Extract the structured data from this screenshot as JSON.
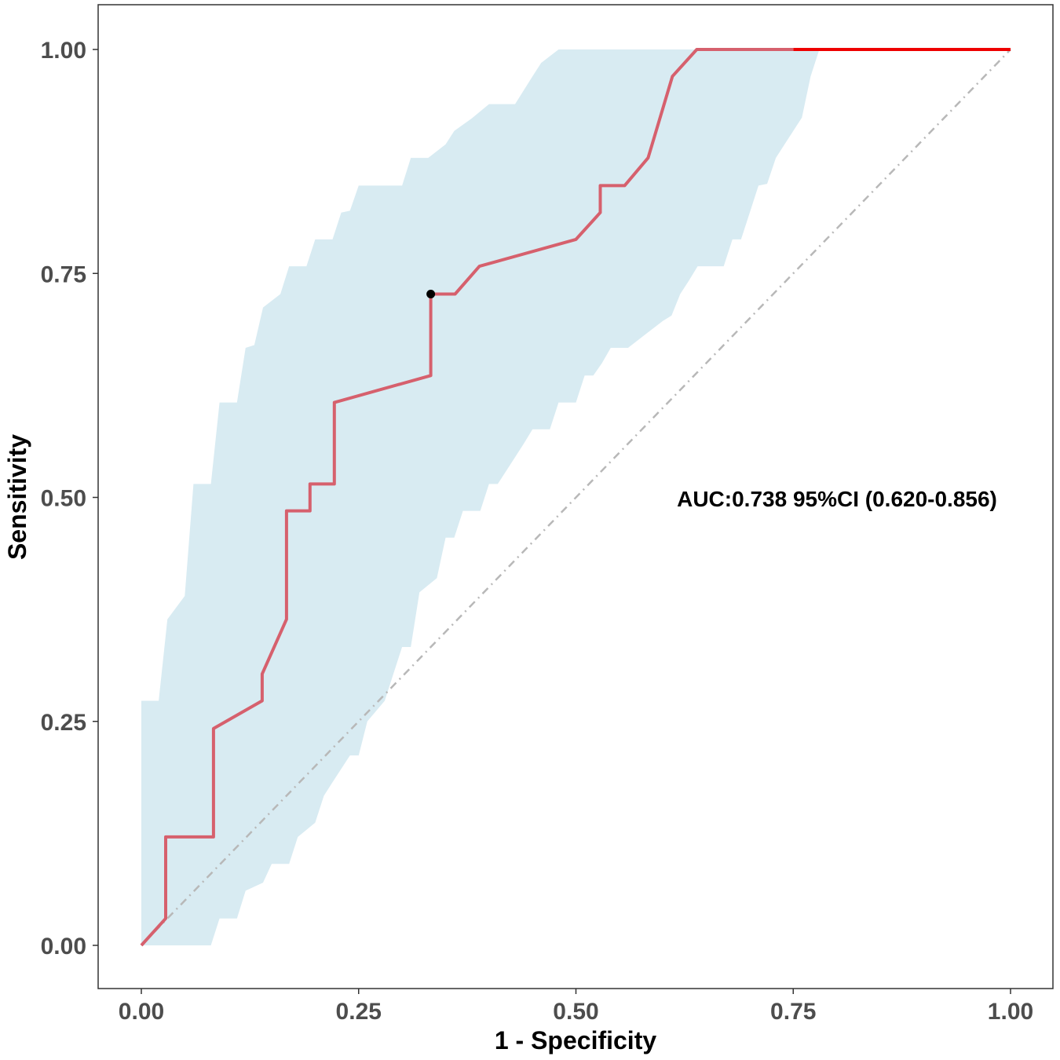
{
  "chart_data": {
    "type": "line",
    "title": "",
    "xlabel": "1 - Specificity",
    "ylabel": "Sensitivity",
    "xlim": [
      0,
      1
    ],
    "ylim": [
      0,
      1
    ],
    "x_ticks": [
      0,
      0.25,
      0.5,
      0.75,
      1
    ],
    "x_tick_labels": [
      "0.00",
      "0.25",
      "0.50",
      "0.75",
      "1.00"
    ],
    "y_ticks": [
      0,
      0.25,
      0.5,
      0.75,
      1
    ],
    "y_tick_labels": [
      "0.00",
      "0.25",
      "0.50",
      "0.75",
      "1.00"
    ],
    "annotation": "AUC:0.738 95%CI (0.620-0.856)",
    "grid": false,
    "colors": {
      "roc_line": "#d6606d",
      "roc_line_end": "#ee0000",
      "ci_band": "#d8ebf2",
      "diagonal": "#b8b8b8",
      "optimal_point": "#000000",
      "frame": "#333333"
    },
    "series": [
      {
        "name": "ROC",
        "points": [
          [
            0,
            0
          ],
          [
            0.028,
            0.03
          ],
          [
            0.028,
            0.121
          ],
          [
            0.083,
            0.121
          ],
          [
            0.083,
            0.242
          ],
          [
            0.139,
            0.273
          ],
          [
            0.139,
            0.303
          ],
          [
            0.167,
            0.364
          ],
          [
            0.167,
            0.485
          ],
          [
            0.194,
            0.485
          ],
          [
            0.194,
            0.515
          ],
          [
            0.222,
            0.515
          ],
          [
            0.222,
            0.606
          ],
          [
            0.333,
            0.636
          ],
          [
            0.333,
            0.727
          ],
          [
            0.361,
            0.727
          ],
          [
            0.389,
            0.758
          ],
          [
            0.5,
            0.788
          ],
          [
            0.528,
            0.818
          ],
          [
            0.528,
            0.848
          ],
          [
            0.556,
            0.848
          ],
          [
            0.583,
            0.879
          ],
          [
            0.611,
            0.97
          ],
          [
            0.639,
            1.0
          ],
          [
            0.75,
            1.0
          ]
        ]
      },
      {
        "name": "ROC-end",
        "points": [
          [
            0.75,
            1.0
          ],
          [
            1.0,
            1.0
          ]
        ]
      },
      {
        "name": "Reference",
        "points": [
          [
            0,
            0
          ],
          [
            1,
            1
          ]
        ]
      }
    ],
    "optimal_point": {
      "x": 0.333,
      "y": 0.727
    },
    "ci_band": {
      "upper": [
        [
          0,
          0
        ],
        [
          0,
          0.273
        ],
        [
          0.02,
          0.273
        ],
        [
          0.03,
          0.364
        ],
        [
          0.05,
          0.39
        ],
        [
          0.06,
          0.515
        ],
        [
          0.08,
          0.515
        ],
        [
          0.09,
          0.606
        ],
        [
          0.11,
          0.606
        ],
        [
          0.12,
          0.667
        ],
        [
          0.13,
          0.67
        ],
        [
          0.14,
          0.712
        ],
        [
          0.16,
          0.727
        ],
        [
          0.17,
          0.758
        ],
        [
          0.19,
          0.758
        ],
        [
          0.2,
          0.788
        ],
        [
          0.22,
          0.788
        ],
        [
          0.23,
          0.818
        ],
        [
          0.24,
          0.82
        ],
        [
          0.25,
          0.848
        ],
        [
          0.3,
          0.848
        ],
        [
          0.31,
          0.879
        ],
        [
          0.33,
          0.879
        ],
        [
          0.35,
          0.894
        ],
        [
          0.36,
          0.909
        ],
        [
          0.38,
          0.923
        ],
        [
          0.4,
          0.939
        ],
        [
          0.43,
          0.939
        ],
        [
          0.45,
          0.97
        ],
        [
          0.46,
          0.985
        ],
        [
          0.48,
          1.0
        ],
        [
          0.78,
          1.0
        ]
      ],
      "lower": [
        [
          0,
          0
        ],
        [
          0.08,
          0
        ],
        [
          0.09,
          0.03
        ],
        [
          0.11,
          0.03
        ],
        [
          0.12,
          0.061
        ],
        [
          0.14,
          0.07
        ],
        [
          0.15,
          0.091
        ],
        [
          0.17,
          0.091
        ],
        [
          0.18,
          0.121
        ],
        [
          0.2,
          0.137
        ],
        [
          0.21,
          0.167
        ],
        [
          0.22,
          0.182
        ],
        [
          0.24,
          0.212
        ],
        [
          0.25,
          0.212
        ],
        [
          0.26,
          0.25
        ],
        [
          0.28,
          0.273
        ],
        [
          0.29,
          0.303
        ],
        [
          0.3,
          0.333
        ],
        [
          0.31,
          0.333
        ],
        [
          0.32,
          0.394
        ],
        [
          0.34,
          0.41
        ],
        [
          0.35,
          0.455
        ],
        [
          0.36,
          0.455
        ],
        [
          0.37,
          0.485
        ],
        [
          0.39,
          0.485
        ],
        [
          0.4,
          0.515
        ],
        [
          0.41,
          0.515
        ],
        [
          0.43,
          0.545
        ],
        [
          0.44,
          0.56
        ],
        [
          0.45,
          0.576
        ],
        [
          0.47,
          0.576
        ],
        [
          0.48,
          0.606
        ],
        [
          0.5,
          0.606
        ],
        [
          0.51,
          0.636
        ],
        [
          0.52,
          0.636
        ],
        [
          0.53,
          0.65
        ],
        [
          0.54,
          0.667
        ],
        [
          0.56,
          0.667
        ],
        [
          0.58,
          0.682
        ],
        [
          0.6,
          0.697
        ],
        [
          0.61,
          0.703
        ],
        [
          0.62,
          0.727
        ],
        [
          0.63,
          0.742
        ],
        [
          0.64,
          0.758
        ],
        [
          0.67,
          0.758
        ],
        [
          0.68,
          0.788
        ],
        [
          0.69,
          0.788
        ],
        [
          0.7,
          0.818
        ],
        [
          0.71,
          0.848
        ],
        [
          0.72,
          0.85
        ],
        [
          0.73,
          0.879
        ],
        [
          0.74,
          0.894
        ],
        [
          0.75,
          0.909
        ],
        [
          0.76,
          0.924
        ],
        [
          0.77,
          0.97
        ],
        [
          0.78,
          1.0
        ]
      ]
    }
  }
}
